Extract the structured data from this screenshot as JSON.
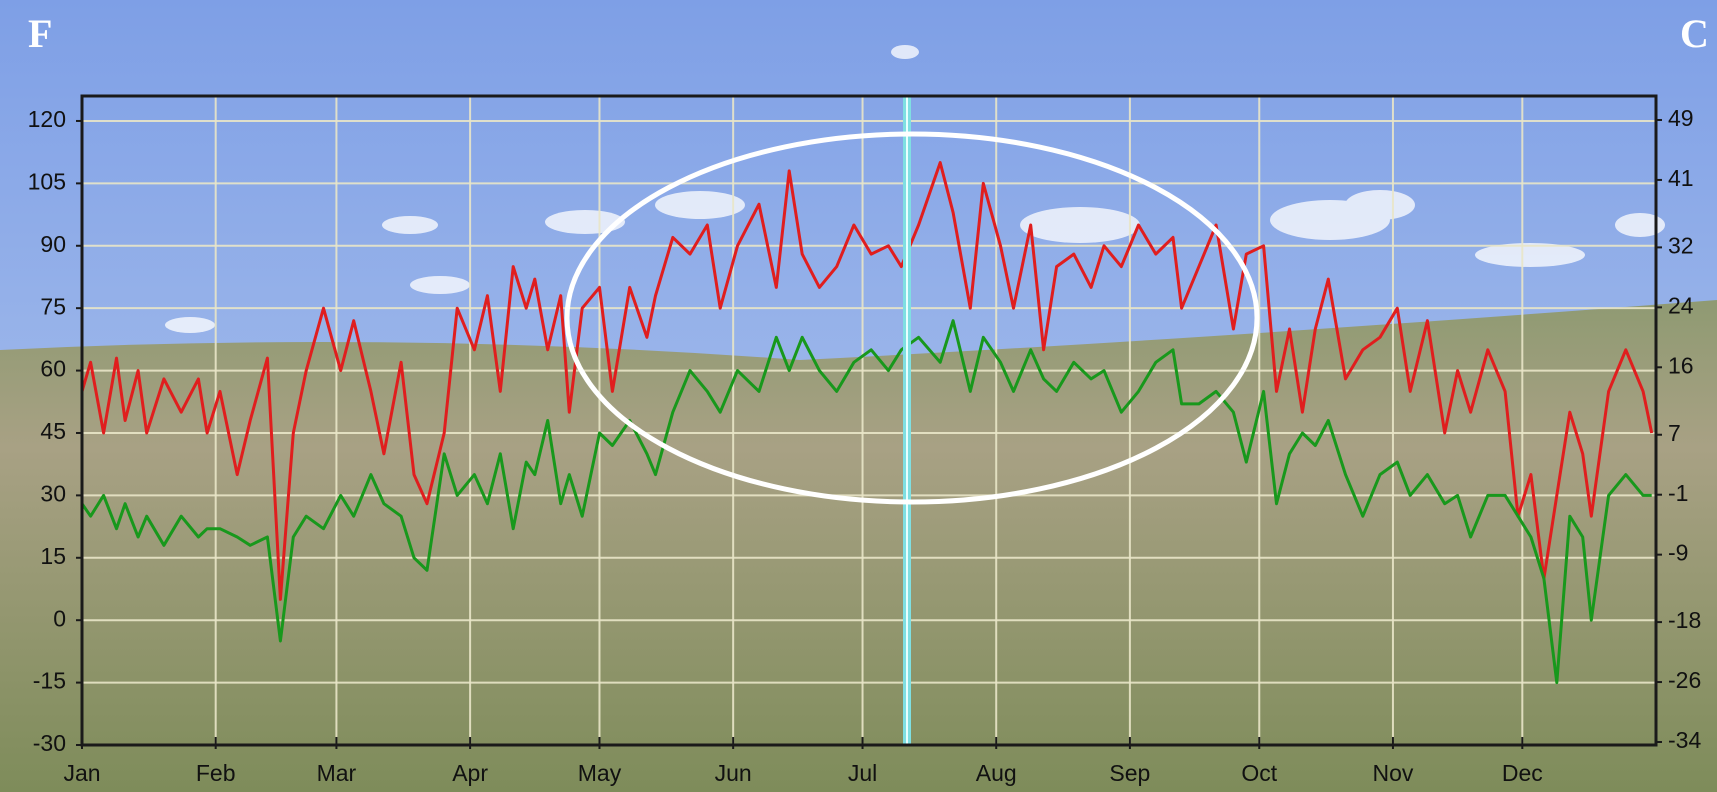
{
  "chart_data": {
    "type": "line",
    "y_axis_label": "F",
    "y2_axis_label": "C",
    "xlim": [
      1,
      366
    ],
    "xticks": [
      {
        "value": 1,
        "label": "Jan"
      },
      {
        "value": 32,
        "label": "Feb"
      },
      {
        "value": 60,
        "label": "Mar"
      },
      {
        "value": 91,
        "label": "Apr"
      },
      {
        "value": 121,
        "label": "May"
      },
      {
        "value": 152,
        "label": "Jun"
      },
      {
        "value": 182,
        "label": "Jul"
      },
      {
        "value": 213,
        "label": "Aug"
      },
      {
        "value": 244,
        "label": "Sep"
      },
      {
        "value": 274,
        "label": "Oct"
      },
      {
        "value": 305,
        "label": "Nov"
      },
      {
        "value": 335,
        "label": "Dec"
      }
    ],
    "ylim": [
      -30,
      126
    ],
    "yticks": [
      -30,
      -15,
      0,
      15,
      30,
      45,
      60,
      75,
      90,
      105,
      120
    ],
    "y2lim": [
      -34.4,
      52.2
    ],
    "y2ticks": [
      -34,
      -26,
      -18,
      -9,
      -1,
      7,
      16,
      24,
      32,
      41,
      49
    ],
    "grid": true,
    "x": [
      1,
      3,
      6,
      9,
      11,
      14,
      16,
      20,
      24,
      28,
      30,
      33,
      37,
      40,
      44,
      47,
      50,
      53,
      57,
      61,
      64,
      68,
      71,
      75,
      78,
      81,
      85,
      88,
      92,
      95,
      98,
      101,
      104,
      106,
      109,
      112,
      114,
      117,
      121,
      124,
      128,
      132,
      134,
      138,
      142,
      146,
      149,
      153,
      158,
      162,
      165,
      168,
      172,
      176,
      180,
      184,
      188,
      191,
      195,
      200,
      203,
      207,
      210,
      214,
      217,
      221,
      224,
      227,
      231,
      235,
      238,
      242,
      246,
      250,
      254,
      256,
      260,
      264,
      268,
      271,
      275,
      278,
      281,
      284,
      287,
      290,
      294,
      298,
      302,
      306,
      309,
      313,
      317,
      320,
      323,
      327,
      331,
      334,
      337,
      340,
      343,
      346,
      349,
      351,
      355,
      359,
      363,
      365
    ],
    "series": [
      {
        "color": "#e01e1e",
        "values": [
          55,
          62,
          45,
          63,
          48,
          60,
          45,
          58,
          50,
          58,
          45,
          55,
          35,
          48,
          63,
          5,
          45,
          60,
          75,
          60,
          72,
          55,
          40,
          62,
          35,
          28,
          45,
          75,
          65,
          78,
          55,
          85,
          75,
          82,
          65,
          78,
          50,
          75,
          80,
          55,
          80,
          68,
          78,
          92,
          88,
          95,
          75,
          90,
          100,
          80,
          108,
          88,
          80,
          85,
          95,
          88,
          90,
          85,
          95,
          110,
          98,
          75,
          105,
          90,
          75,
          95,
          65,
          85,
          88,
          80,
          90,
          85,
          95,
          88,
          92,
          75,
          85,
          95,
          70,
          88,
          90,
          55,
          70,
          50,
          70,
          82,
          58,
          65,
          68,
          75,
          55,
          72,
          45,
          60,
          50,
          65,
          55,
          25,
          35,
          10,
          30,
          50,
          40,
          25,
          55,
          65,
          55,
          45
        ]
      },
      {
        "color": "#18981c",
        "values": [
          28,
          25,
          30,
          22,
          28,
          20,
          25,
          18,
          25,
          20,
          22,
          22,
          20,
          18,
          20,
          -5,
          20,
          25,
          22,
          30,
          25,
          35,
          28,
          25,
          15,
          12,
          40,
          30,
          35,
          28,
          40,
          22,
          38,
          35,
          48,
          28,
          35,
          25,
          45,
          42,
          48,
          40,
          35,
          50,
          60,
          55,
          50,
          60,
          55,
          68,
          60,
          68,
          60,
          55,
          62,
          65,
          60,
          65,
          68,
          62,
          72,
          55,
          68,
          62,
          55,
          65,
          58,
          55,
          62,
          58,
          60,
          50,
          55,
          62,
          65,
          52,
          52,
          55,
          50,
          38,
          55,
          28,
          40,
          45,
          42,
          48,
          35,
          25,
          35,
          38,
          30,
          35,
          28,
          30,
          20,
          30,
          30,
          25,
          20,
          10,
          -15,
          25,
          20,
          0,
          30,
          35,
          30,
          30
        ]
      }
    ]
  }
}
